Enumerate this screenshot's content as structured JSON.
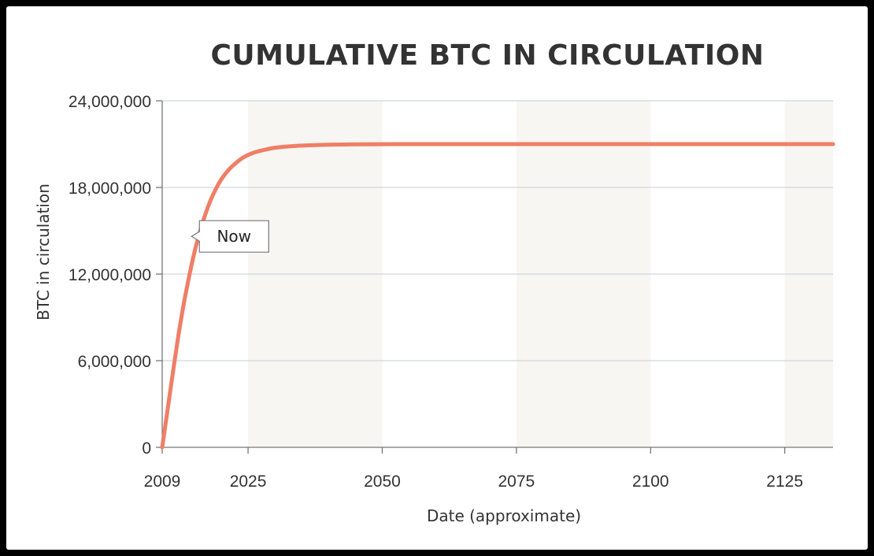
{
  "chart_data": {
    "type": "line",
    "title": "CUMULATIVE BTC IN CIRCULATION",
    "xlabel": "Date (approximate)",
    "ylabel": "BTC in circulation",
    "xlim": [
      2009,
      2134
    ],
    "ylim": [
      0,
      24000000
    ],
    "x_ticks": [
      2009,
      2025,
      2050,
      2075,
      2100,
      2125
    ],
    "y_ticks": [
      0,
      6000000,
      12000000,
      18000000,
      24000000
    ],
    "y_tick_labels": [
      "0",
      "6,000,000",
      "12,000,000",
      "18,000,000",
      "24,000,000"
    ],
    "grid": "horizontal",
    "shaded_bands": [
      [
        2025,
        2050
      ],
      [
        2075,
        2100
      ],
      [
        2125,
        2134
      ]
    ],
    "series": [
      {
        "color": "#f07e66",
        "x": [
          2009,
          2010,
          2011,
          2012,
          2013,
          2014,
          2015,
          2016,
          2017,
          2018,
          2019,
          2020,
          2021,
          2022,
          2024,
          2026,
          2028,
          2030,
          2034,
          2040,
          2045,
          2050,
          2060,
          2075,
          2100,
          2134
        ],
        "y": [
          0,
          2600000,
          5200000,
          7700000,
          9900000,
          11800000,
          13500000,
          14900000,
          16100000,
          17100000,
          17900000,
          18550000,
          19050000,
          19450000,
          20050000,
          20400000,
          20600000,
          20750000,
          20880000,
          20960000,
          20985000,
          20995000,
          21000000,
          21000000,
          21000000,
          21000000
        ]
      }
    ],
    "annotations": [
      {
        "text": "Now",
        "x": 2013,
        "y": 14500000
      }
    ],
    "colors": {
      "band": "#f7f6f2",
      "grid": "#cfd6dc",
      "axis": "#777777"
    }
  }
}
